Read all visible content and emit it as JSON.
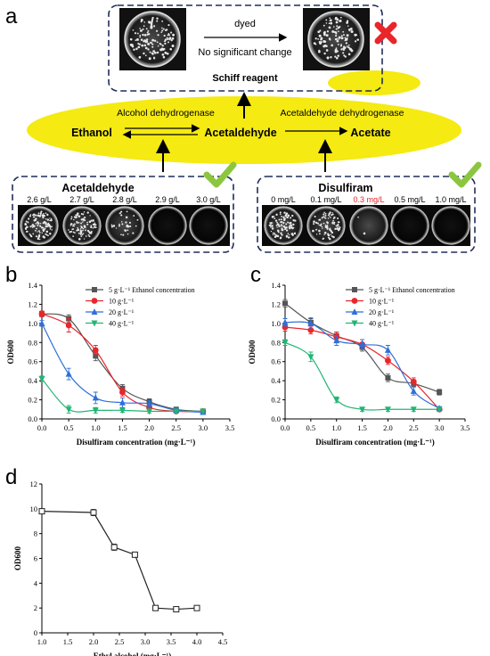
{
  "panels": {
    "a": {
      "letter": "a",
      "top_box": {
        "arrow_label": "dyed",
        "arrow_sublabel": "No significant change",
        "title": "Schiff reagent"
      },
      "pathway": {
        "ethanol": "Ethanol",
        "acetaldehyde": "Acetaldehyde",
        "acetate": "Acetate",
        "enzyme1": "Alcohol dehydrogenase",
        "enzyme2": "Acetaldehyde dehydrogenase"
      },
      "left_box": {
        "title": "Acetaldehyde",
        "concentrations": [
          "2.6 g/L",
          "2.7 g/L",
          "2.8 g/L",
          "2.9 g/L",
          "3.0 g/L"
        ]
      },
      "right_box": {
        "title": "Disulfiram",
        "concentrations": [
          "0 mg/L",
          "0.1 mg/L",
          "0.3 mg/L",
          "0.5 mg/L",
          "1.0 mg/L"
        ]
      },
      "colors": {
        "highlight": "#f5ea12",
        "cross": "#e8262b",
        "check": "#8cc63f",
        "box_border": "#1f2d5a",
        "red_text": "#e8262b"
      }
    },
    "b": {
      "letter": "b"
    },
    "c": {
      "letter": "c"
    },
    "d": {
      "letter": "d"
    }
  },
  "chart_data": [
    {
      "id": "b",
      "type": "line",
      "xlabel": "Disulfiram concentration (mg·L⁻¹)",
      "ylabel": "OD600",
      "xlim": [
        0,
        3.5
      ],
      "ylim": [
        0,
        1.4
      ],
      "xticks": [
        "0.0",
        "0.5",
        "1.0",
        "1.5",
        "2.0",
        "2.5",
        "3.0",
        "3.5"
      ],
      "yticks": [
        "0.0",
        "0.2",
        "0.4",
        "0.6",
        "0.8",
        "1.0",
        "1.2",
        "1.4"
      ],
      "legend_position": "top-right",
      "x": [
        0,
        0.5,
        1.0,
        1.5,
        2.0,
        2.5,
        3.0
      ],
      "series": [
        {
          "name": "5 g·L⁻¹ Ethanol concentration",
          "color": "#555555",
          "marker": "square",
          "values": [
            1.1,
            1.05,
            0.66,
            0.32,
            0.18,
            0.1,
            0.08
          ],
          "errors": [
            0.03,
            0.04,
            0.05,
            0.04,
            0.03,
            0.02,
            0.02
          ]
        },
        {
          "name": "10 g·L⁻¹",
          "color": "#e8262b",
          "marker": "circle",
          "values": [
            1.1,
            0.98,
            0.72,
            0.28,
            0.12,
            0.08,
            0.08
          ],
          "errors": [
            0.03,
            0.07,
            0.05,
            0.04,
            0.03,
            0.02,
            0.02
          ]
        },
        {
          "name": "20 g·L⁻¹",
          "color": "#2f6fd8",
          "marker": "triangle-up",
          "values": [
            1.0,
            0.47,
            0.22,
            0.17,
            0.16,
            0.09,
            0.07
          ],
          "errors": [
            0.03,
            0.06,
            0.06,
            0.05,
            0.03,
            0.02,
            0.02
          ]
        },
        {
          "name": "40 g·L⁻¹",
          "color": "#22b573",
          "marker": "triangle-down",
          "values": [
            0.42,
            0.1,
            0.09,
            0.09,
            0.08,
            0.08,
            0.08
          ],
          "errors": [
            0.03,
            0.04,
            0.03,
            0.02,
            0.02,
            0.02,
            0.02
          ]
        }
      ]
    },
    {
      "id": "c",
      "type": "line",
      "xlabel": "Disulfiram concentration (mg·L⁻¹)",
      "ylabel": "OD600",
      "xlim": [
        0,
        3.5
      ],
      "ylim": [
        0,
        1.4
      ],
      "xticks": [
        "0.0",
        "0.5",
        "1.0",
        "1.5",
        "2.0",
        "2.5",
        "3.0",
        "3.5"
      ],
      "yticks": [
        "0.0",
        "0.2",
        "0.4",
        "0.6",
        "0.8",
        "1.0",
        "1.2",
        "1.4"
      ],
      "legend_position": "top-right",
      "x": [
        0,
        0.5,
        1.0,
        1.5,
        2.0,
        2.5,
        3.0
      ],
      "series": [
        {
          "name": "5 g·L⁻¹ Ethanol concentration",
          "color": "#555555",
          "marker": "square",
          "values": [
            1.21,
            1.01,
            0.87,
            0.75,
            0.43,
            0.37,
            0.28
          ],
          "errors": [
            0.04,
            0.04,
            0.04,
            0.04,
            0.04,
            0.03,
            0.03
          ]
        },
        {
          "name": "10 g·L⁻¹",
          "color": "#e8262b",
          "marker": "circle",
          "values": [
            0.96,
            0.93,
            0.86,
            0.78,
            0.61,
            0.39,
            0.1
          ],
          "errors": [
            0.04,
            0.04,
            0.05,
            0.05,
            0.04,
            0.04,
            0.02
          ]
        },
        {
          "name": "20 g·L⁻¹",
          "color": "#2f6fd8",
          "marker": "triangle-up",
          "values": [
            1.01,
            1.0,
            0.82,
            0.78,
            0.72,
            0.29,
            0.11
          ],
          "errors": [
            0.04,
            0.06,
            0.05,
            0.05,
            0.05,
            0.04,
            0.02
          ]
        },
        {
          "name": "40 g·L⁻¹",
          "color": "#22b573",
          "marker": "triangle-down",
          "values": [
            0.8,
            0.65,
            0.2,
            0.1,
            0.1,
            0.1,
            0.1
          ],
          "errors": [
            0.03,
            0.05,
            0.03,
            0.02,
            0.02,
            0.02,
            0.02
          ]
        }
      ]
    },
    {
      "id": "d",
      "type": "line",
      "xlabel": "Ethyl alcohol (mg·L⁻¹)",
      "ylabel": "OD600",
      "xlim": [
        1.0,
        4.5
      ],
      "ylim": [
        0,
        12
      ],
      "xticks": [
        "1.0",
        "1.5",
        "2.0",
        "2.5",
        "3.0",
        "3.5",
        "4.0",
        "4.5"
      ],
      "yticks": [
        "0",
        "2",
        "4",
        "6",
        "8",
        "10",
        "12"
      ],
      "x": [
        1.0,
        2.0,
        2.4,
        2.8,
        3.2,
        3.6,
        4.0
      ],
      "series": [
        {
          "name": "",
          "color": "#222222",
          "marker": "square-open",
          "values": [
            9.8,
            9.7,
            6.9,
            6.3,
            2.0,
            1.9,
            2.0
          ],
          "errors": [
            0.1,
            0.25,
            0.25,
            0.2,
            0.05,
            0.05,
            0.05
          ]
        }
      ]
    }
  ]
}
